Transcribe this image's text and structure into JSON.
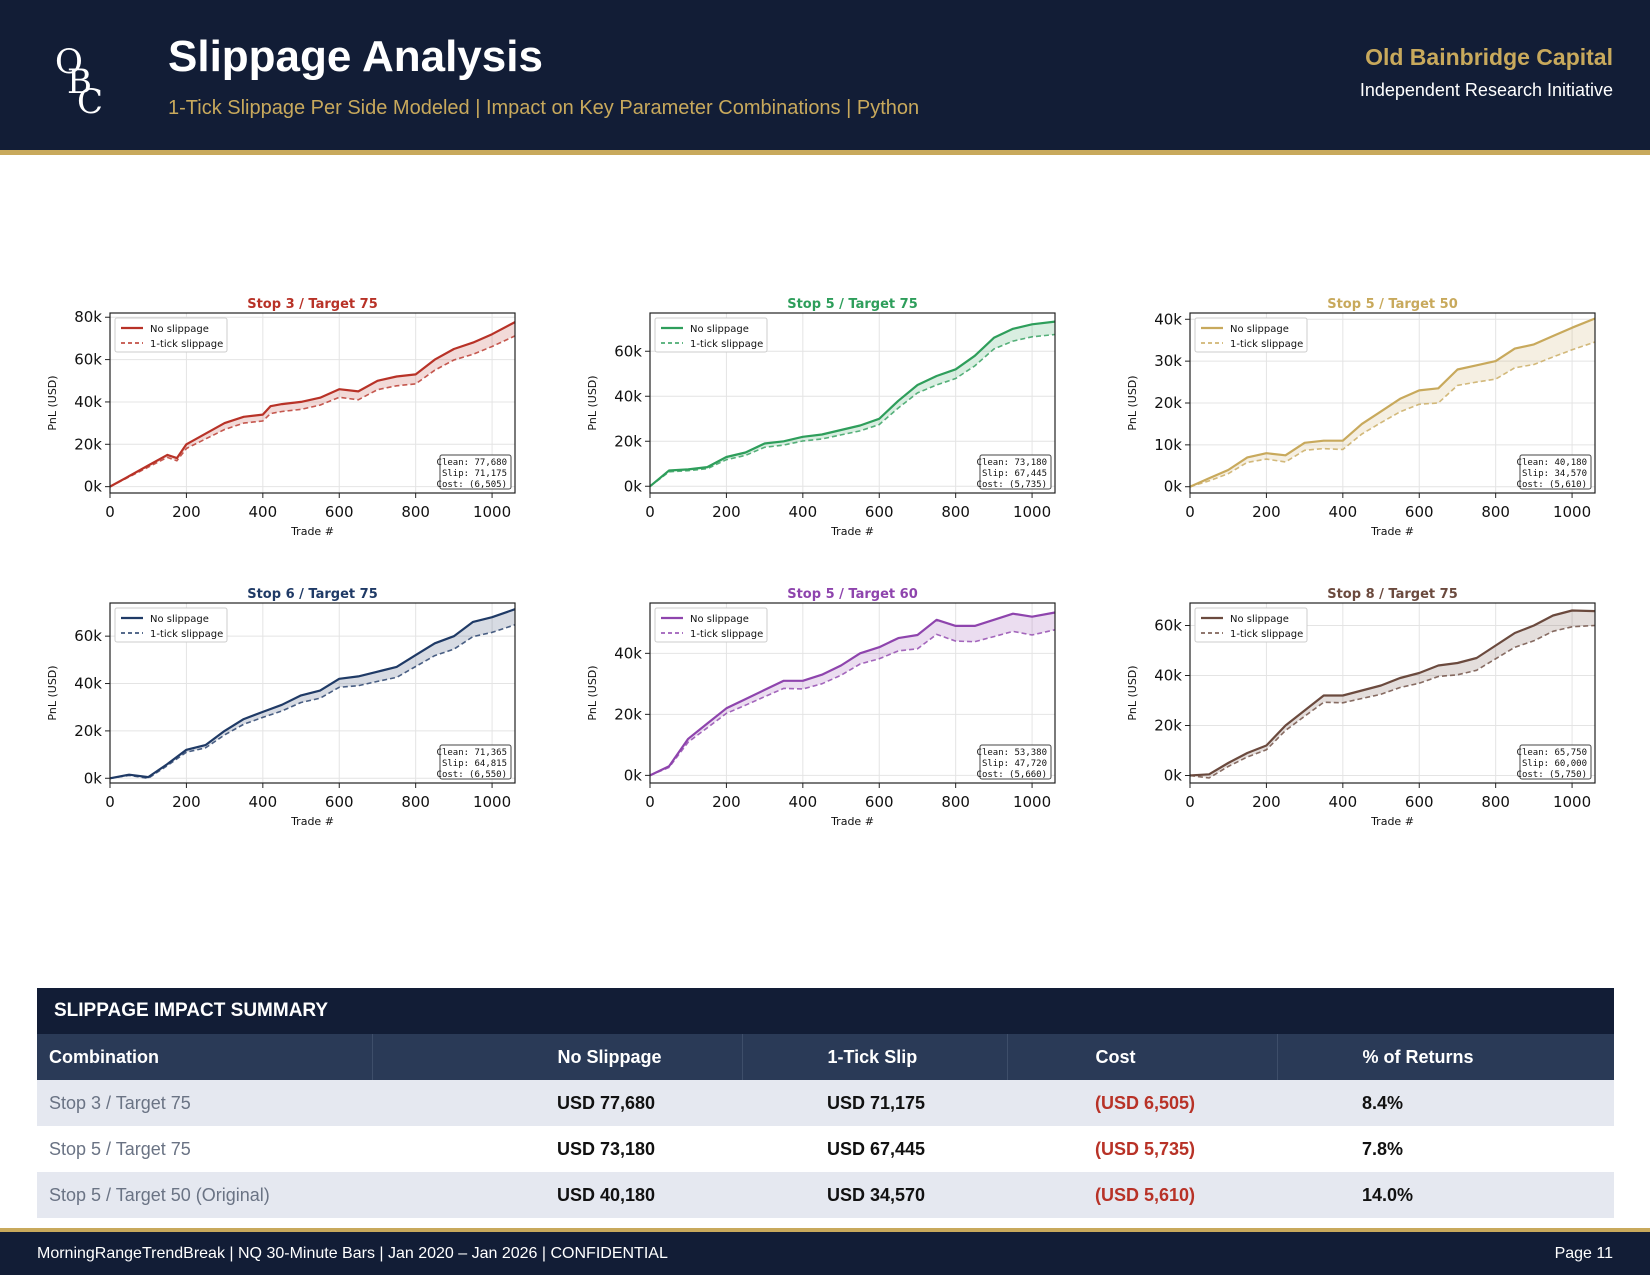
{
  "header": {
    "logo_letters": [
      "O",
      "B",
      "C"
    ],
    "title": "Slippage Analysis",
    "subtitle": "1-Tick Slippage Per Side Modeled | Impact on Key Parameter Combinations | Python",
    "firm_name": "Old Bainbridge Capital",
    "firm_tagline": "Independent Research Initiative"
  },
  "chart_data": [
    {
      "type": "line",
      "title": "Stop 3 / Target 75",
      "color": "#b83227",
      "xlabel": "Trade #",
      "ylabel": "PnL (USD)",
      "xlim": [
        0,
        1060
      ],
      "xticks": [
        0,
        200,
        400,
        600,
        800,
        1000
      ],
      "ylim": [
        -3000,
        82000
      ],
      "yticks": [
        0,
        20000,
        40000,
        60000,
        80000
      ],
      "ytick_labels": [
        "0k",
        "20k",
        "40k",
        "60k",
        "80k"
      ],
      "legend": [
        "No slippage",
        "1-tick slippage"
      ],
      "series": [
        {
          "name": "No slippage",
          "x": [
            0,
            50,
            100,
            150,
            175,
            200,
            250,
            300,
            350,
            400,
            420,
            450,
            500,
            550,
            600,
            650,
            700,
            750,
            800,
            850,
            900,
            950,
            1000,
            1060
          ],
          "values": [
            0,
            5000,
            10000,
            15000,
            13500,
            20000,
            25000,
            30000,
            33000,
            34000,
            38000,
            39000,
            40000,
            42000,
            46000,
            45000,
            50000,
            52000,
            53000,
            60000,
            65000,
            68000,
            72000,
            77680
          ]
        },
        {
          "name": "1-tick slippage",
          "x": [
            0,
            50,
            100,
            150,
            175,
            200,
            250,
            300,
            350,
            400,
            420,
            450,
            500,
            550,
            600,
            650,
            700,
            750,
            800,
            850,
            900,
            950,
            1000,
            1060
          ],
          "values": [
            0,
            4600,
            9200,
            13800,
            12200,
            18000,
            22500,
            27000,
            30000,
            31000,
            34500,
            35500,
            36500,
            38500,
            42200,
            41000,
            45800,
            47600,
            48500,
            55000,
            59800,
            62500,
            66200,
            71175
          ]
        }
      ],
      "annotation": {
        "clean": "77,680",
        "slip": "71,175",
        "cost": "(6,505)"
      }
    },
    {
      "type": "line",
      "title": "Stop 5 / Target 75",
      "color": "#2e9e5b",
      "xlabel": "Trade #",
      "ylabel": "PnL (USD)",
      "xlim": [
        0,
        1060
      ],
      "xticks": [
        0,
        200,
        400,
        600,
        800,
        1000
      ],
      "ylim": [
        -3000,
        77000
      ],
      "yticks": [
        0,
        20000,
        40000,
        60000
      ],
      "ytick_labels": [
        "0k",
        "20k",
        "40k",
        "60k"
      ],
      "legend": [
        "No slippage",
        "1-tick slippage"
      ],
      "series": [
        {
          "name": "No slippage",
          "x": [
            0,
            50,
            100,
            150,
            200,
            250,
            300,
            350,
            400,
            450,
            500,
            550,
            600,
            650,
            700,
            750,
            800,
            850,
            900,
            950,
            1000,
            1060
          ],
          "values": [
            0,
            7000,
            7500,
            8500,
            13000,
            15000,
            19000,
            20000,
            22000,
            23000,
            25000,
            27000,
            30000,
            38000,
            45000,
            49000,
            52000,
            58000,
            66000,
            70000,
            72000,
            73180
          ]
        },
        {
          "name": "1-tick slippage",
          "x": [
            0,
            50,
            100,
            150,
            200,
            250,
            300,
            350,
            400,
            450,
            500,
            550,
            600,
            650,
            700,
            750,
            800,
            850,
            900,
            950,
            1000,
            1060
          ],
          "values": [
            0,
            6400,
            6900,
            7800,
            11800,
            13700,
            17300,
            18300,
            20100,
            21000,
            22800,
            24600,
            27400,
            34800,
            41500,
            45000,
            47900,
            53500,
            61000,
            64500,
            66400,
            67445
          ]
        }
      ],
      "annotation": {
        "clean": "73,180",
        "slip": "67,445",
        "cost": "(5,735)"
      }
    },
    {
      "type": "line",
      "title": "Stop 5 / Target 50",
      "color": "#c8a95c",
      "xlabel": "Trade #",
      "ylabel": "PnL (USD)",
      "xlim": [
        0,
        1060
      ],
      "xticks": [
        0,
        200,
        400,
        600,
        800,
        1000
      ],
      "ylim": [
        -1500,
        41500
      ],
      "yticks": [
        0,
        10000,
        20000,
        30000,
        40000
      ],
      "ytick_labels": [
        "0k",
        "10k",
        "20k",
        "30k",
        "40k"
      ],
      "legend": [
        "No slippage",
        "1-tick slippage"
      ],
      "series": [
        {
          "name": "No slippage",
          "x": [
            0,
            50,
            100,
            150,
            200,
            250,
            300,
            350,
            400,
            450,
            500,
            550,
            600,
            650,
            700,
            750,
            800,
            850,
            900,
            950,
            1000,
            1060
          ],
          "values": [
            0,
            2000,
            4000,
            7000,
            8000,
            7500,
            10500,
            11000,
            11000,
            15000,
            18000,
            21000,
            23000,
            23500,
            28000,
            29000,
            30000,
            33000,
            34000,
            36000,
            38000,
            40180
          ]
        },
        {
          "name": "1-tick slippage",
          "x": [
            0,
            50,
            100,
            150,
            200,
            250,
            300,
            350,
            400,
            450,
            500,
            550,
            600,
            650,
            700,
            750,
            800,
            850,
            900,
            950,
            1000,
            1060
          ],
          "values": [
            0,
            1400,
            3100,
            5800,
            6600,
            5900,
            8700,
            9100,
            8900,
            12600,
            15300,
            17900,
            19700,
            20000,
            24200,
            25000,
            25700,
            28400,
            29200,
            31000,
            32700,
            34570
          ]
        }
      ],
      "annotation": {
        "clean": "40,180",
        "slip": "34,570",
        "cost": "(5,610)"
      }
    },
    {
      "type": "line",
      "title": "Stop 6 / Target 75",
      "color": "#1f3a66",
      "xlabel": "Trade #",
      "ylabel": "PnL (USD)",
      "xlim": [
        0,
        1060
      ],
      "xticks": [
        0,
        200,
        400,
        600,
        800,
        1000
      ],
      "ylim": [
        -2000,
        74000
      ],
      "yticks": [
        0,
        20000,
        40000,
        60000
      ],
      "ytick_labels": [
        "0k",
        "20k",
        "40k",
        "60k"
      ],
      "legend": [
        "No slippage",
        "1-tick slippage"
      ],
      "series": [
        {
          "name": "No slippage",
          "x": [
            0,
            50,
            100,
            150,
            200,
            250,
            300,
            350,
            400,
            450,
            500,
            550,
            600,
            650,
            700,
            750,
            800,
            850,
            900,
            950,
            1000,
            1060
          ],
          "values": [
            0,
            1500,
            500,
            6000,
            12000,
            14000,
            20000,
            25000,
            28000,
            31000,
            35000,
            37000,
            42000,
            43000,
            45000,
            47000,
            52000,
            57000,
            60000,
            66000,
            68000,
            71365
          ]
        },
        {
          "name": "1-tick slippage",
          "x": [
            0,
            50,
            100,
            150,
            200,
            250,
            300,
            350,
            400,
            450,
            500,
            550,
            600,
            650,
            700,
            750,
            800,
            850,
            900,
            950,
            1000,
            1060
          ],
          "values": [
            0,
            1200,
            0,
            5300,
            11000,
            12800,
            18300,
            22800,
            25700,
            28400,
            32000,
            33800,
            38400,
            39100,
            40900,
            42600,
            47200,
            51800,
            54500,
            59800,
            61600,
            64815
          ]
        }
      ],
      "annotation": {
        "clean": "71,365",
        "slip": "64,815",
        "cost": "(6,550)"
      }
    },
    {
      "type": "line",
      "title": "Stop 5 / Target 60",
      "color": "#8e44ad",
      "xlabel": "Trade #",
      "ylabel": "PnL (USD)",
      "xlim": [
        0,
        1060
      ],
      "xticks": [
        0,
        200,
        400,
        600,
        800,
        1000
      ],
      "ylim": [
        -2500,
        56500
      ],
      "yticks": [
        0,
        20000,
        40000
      ],
      "ytick_labels": [
        "0k",
        "20k",
        "40k"
      ],
      "legend": [
        "No slippage",
        "1-tick slippage"
      ],
      "series": [
        {
          "name": "No slippage",
          "x": [
            0,
            50,
            100,
            150,
            200,
            250,
            300,
            350,
            400,
            450,
            500,
            550,
            600,
            650,
            700,
            750,
            800,
            850,
            900,
            950,
            1000,
            1060
          ],
          "values": [
            0,
            3000,
            12000,
            17000,
            22000,
            25000,
            28000,
            31000,
            31000,
            33000,
            36000,
            40000,
            42000,
            45000,
            46000,
            51000,
            49000,
            49000,
            51000,
            53000,
            52000,
            53380
          ]
        },
        {
          "name": "1-tick slippage",
          "x": [
            0,
            50,
            100,
            150,
            200,
            250,
            300,
            350,
            400,
            450,
            500,
            550,
            600,
            650,
            700,
            750,
            800,
            850,
            900,
            950,
            1000,
            1060
          ],
          "values": [
            0,
            2600,
            10900,
            15600,
            20300,
            23000,
            25800,
            28500,
            28300,
            30000,
            32800,
            36500,
            38200,
            40800,
            41500,
            46200,
            44000,
            43800,
            45500,
            47200,
            46000,
            47720
          ]
        }
      ],
      "annotation": {
        "clean": "53,380",
        "slip": "47,720",
        "cost": "(5,660)"
      }
    },
    {
      "type": "line",
      "title": "Stop 8 / Target 75",
      "color": "#6b4a3e",
      "xlabel": "Trade #",
      "ylabel": "PnL (USD)",
      "xlim": [
        0,
        1060
      ],
      "xticks": [
        0,
        200,
        400,
        600,
        800,
        1000
      ],
      "ylim": [
        -3000,
        69000
      ],
      "yticks": [
        0,
        20000,
        40000,
        60000
      ],
      "ytick_labels": [
        "0k",
        "20k",
        "40k",
        "60k"
      ],
      "legend": [
        "No slippage",
        "1-tick slippage"
      ],
      "series": [
        {
          "name": "No slippage",
          "x": [
            0,
            50,
            100,
            150,
            200,
            250,
            300,
            350,
            400,
            450,
            500,
            550,
            600,
            650,
            700,
            750,
            800,
            850,
            900,
            950,
            1000,
            1060
          ],
          "values": [
            0,
            500,
            5000,
            9000,
            12000,
            20000,
            26000,
            32000,
            32000,
            34000,
            36000,
            39000,
            41000,
            44000,
            45000,
            47000,
            52000,
            57000,
            60000,
            64000,
            66000,
            65750
          ]
        },
        {
          "name": "1-tick slippage",
          "x": [
            0,
            50,
            100,
            150,
            200,
            250,
            300,
            350,
            400,
            450,
            500,
            550,
            600,
            650,
            700,
            750,
            800,
            850,
            900,
            950,
            1000,
            1060
          ],
          "values": [
            0,
            -1000,
            3600,
            7400,
            10300,
            18000,
            23700,
            29300,
            29100,
            30800,
            32500,
            35200,
            36900,
            39600,
            40300,
            42100,
            46700,
            51300,
            53900,
            57700,
            59500,
            60000
          ]
        }
      ],
      "annotation": {
        "clean": "65,750",
        "slip": "60,000",
        "cost": "(5,750)"
      }
    }
  ],
  "annotation_labels": {
    "clean": "Clean:",
    "slip": "Slip:",
    "cost": "Cost:"
  },
  "summary": {
    "title": "SLIPPAGE IMPACT SUMMARY",
    "columns": [
      "Combination",
      "No Slippage",
      "1-Tick Slip",
      "Cost",
      "% of Returns"
    ],
    "rows": [
      [
        "Stop 3 / Target 75",
        "USD 77,680",
        "USD 71,175",
        "(USD 6,505)",
        "8.4%"
      ],
      [
        "Stop 5 / Target 75",
        "USD 73,180",
        "USD 67,445",
        "(USD 5,735)",
        "7.8%"
      ],
      [
        "Stop 5 / Target 50 (Original)",
        "USD 40,180",
        "USD 34,570",
        "(USD 5,610)",
        "14.0%"
      ]
    ]
  },
  "footer": {
    "left": "MorningRangeTrendBreak | NQ 30-Minute Bars | Jan 2020 – Jan 2026 | CONFIDENTIAL",
    "right": "Page 11"
  }
}
